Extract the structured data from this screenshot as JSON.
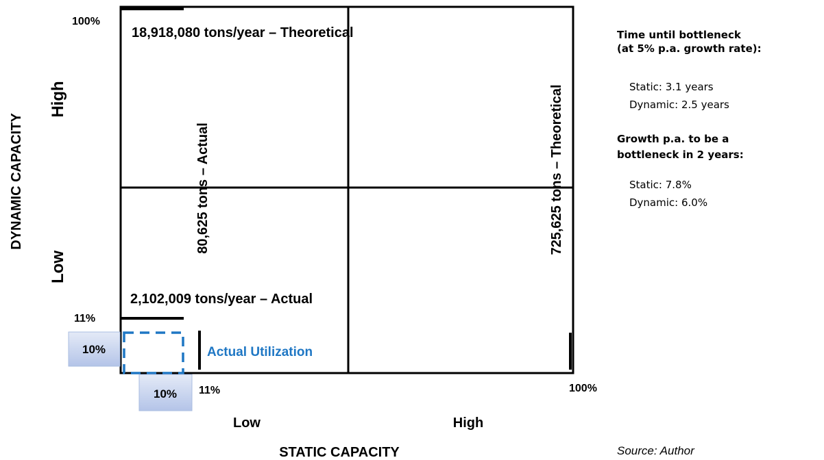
{
  "matrix": {
    "y_axis": {
      "title": "DYNAMIC  CAPACITY",
      "high": "High",
      "low": "Low",
      "top": "100%",
      "mark": "11%",
      "actual": "10%"
    },
    "x_axis": {
      "title": "STATIC CAPACITY",
      "low": "Low",
      "high": "High",
      "end": "100%",
      "mark": "11%",
      "actual": "10%"
    },
    "labels": {
      "dynamic_theoretical": "18,918,080 tons/year – Theoretical",
      "dynamic_actual": "2,102,009 tons/year – Actual",
      "static_actual": "80,625 tons – Actual",
      "static_theoretical": "725,625 tons – Theoretical",
      "utilization": "Actual Utilization"
    }
  },
  "side_panel": {
    "section1": {
      "heading": [
        "Time until bottleneck",
        "(at 5% p.a. growth rate):"
      ],
      "lines": [
        "Static:  3.1 years",
        "Dynamic:  2.5 years"
      ]
    },
    "section2": {
      "heading": [
        "Growth p.a. to be a",
        "bottleneck in 2 years:"
      ],
      "lines": [
        "Static:  7.8%",
        "Dynamic:  6.0%"
      ]
    },
    "source": "Source: Author"
  }
}
